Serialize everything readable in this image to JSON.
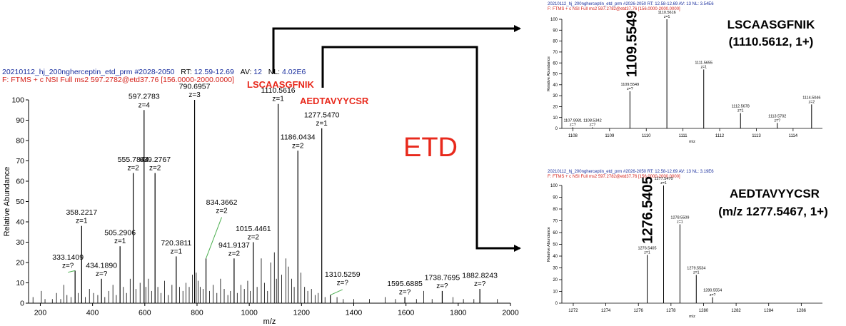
{
  "colors": {
    "accent_red": "#e8291c",
    "header_blue": "#1a2f9e",
    "header_red": "#d4211a",
    "peak": "#000000",
    "leader": "#4caf50"
  },
  "annotations": {
    "etd": "ETD",
    "label_lscaasgfnik": "LSCAASGFNIK",
    "label_aedtavyycsr": "AEDTAVYYCSR",
    "inset_top_title": "LSCAASGFNIK",
    "inset_top_sub": "(1110.5612, 1+)",
    "inset_bottom_title": "AEDTAVYYCSR",
    "inset_bottom_sub": "(m/z 1277.5467, 1+)",
    "rot_top": "1109.5549",
    "rot_bottom": "1276.5405"
  },
  "main_header": {
    "name": "20210112_hj_200ngherceptin_etd_prm",
    "scan": "#2028-2050",
    "rt_label": "RT:",
    "rt": "12.59-12.69",
    "av_label": "AV:",
    "av": "12",
    "nl_label": "NL:",
    "nl": "4.02E6",
    "filter": "F: FTMS + c NSI Full ms2 597.2782@etd37.76 [156.0000-2000.0000]"
  },
  "inset_top_header": {
    "line1": "20210112_hj_200ngherceptin_etd_prm #2026-2050   RT: 12.58-12.69   AV: 13   NL: 3.54E6",
    "line2": "F: FTMS + c NSI Full ms2 597.2782@etd37.76 [156.0000-2000.0000]"
  },
  "inset_bottom_header": {
    "line1": "20210112_hj_200ngherceptin_etd_prm #2026-2050   RT: 12.58-12.69   AV: 13   NL: 3.19E6",
    "line2": "F: FTMS + c NSI Full ms2 597.2782@etd37.76 [156.0000-2000.0000]"
  },
  "chart_data": [
    {
      "type": "bar",
      "xlabel": "m/z",
      "ylabel": "Relative Abundance",
      "xlim": [
        155,
        2000
      ],
      "ylim": [
        0,
        100
      ],
      "xticks": [
        200,
        400,
        600,
        800,
        1000,
        1200,
        1400,
        1600,
        1800,
        2000
      ],
      "yticks": [
        0,
        10,
        20,
        30,
        40,
        50,
        60,
        70,
        80,
        90,
        100
      ],
      "peaks": [
        {
          "x": 333.1409,
          "y": 16,
          "label": "333.1409",
          "z": "z=?"
        },
        {
          "x": 358.2217,
          "y": 38,
          "label": "358.2217",
          "z": "z=1"
        },
        {
          "x": 434.189,
          "y": 12,
          "label": "434.1890",
          "z": "z=?"
        },
        {
          "x": 505.2906,
          "y": 28,
          "label": "505.2906",
          "z": "z=1"
        },
        {
          "x": 555.7844,
          "y": 64,
          "label": "555.7844",
          "z": "z=2"
        },
        {
          "x": 597.2783,
          "y": 95,
          "label": "597.2783",
          "z": "z=4"
        },
        {
          "x": 639.2767,
          "y": 64,
          "label": "639.2767",
          "z": "z=2"
        },
        {
          "x": 720.3811,
          "y": 23,
          "label": "720.3811",
          "z": "z=1"
        },
        {
          "x": 790.6957,
          "y": 100,
          "label": "790.6957",
          "z": "z=3"
        },
        {
          "x": 834.3662,
          "y": 22,
          "label": "834.3662",
          "z": "z=2"
        },
        {
          "x": 941.9137,
          "y": 22,
          "label": "941.9137",
          "z": "z=2"
        },
        {
          "x": 1015.4461,
          "y": 30,
          "label": "1015.4461",
          "z": "z=2"
        },
        {
          "x": 1110.5616,
          "y": 98,
          "label": "1110.5616",
          "z": "z=1"
        },
        {
          "x": 1186.0434,
          "y": 75,
          "label": "1186.0434",
          "z": "z=2"
        },
        {
          "x": 1277.547,
          "y": 86,
          "label": "1277.5470",
          "z": "z=1"
        },
        {
          "x": 1310.5259,
          "y": 4,
          "label": "1310.5259",
          "z": "z=?"
        },
        {
          "x": 1595.6885,
          "y": 3,
          "label": "1595.6885",
          "z": "z=?"
        },
        {
          "x": 1738.7695,
          "y": 6,
          "label": "1738.7695",
          "z": "z=?"
        },
        {
          "x": 1882.8243,
          "y": 7,
          "label": "1882.8243",
          "z": "z=?"
        }
      ],
      "minor_peaks": [
        [
          172,
          3
        ],
        [
          204,
          6
        ],
        [
          218,
          2
        ],
        [
          246,
          2
        ],
        [
          262,
          5
        ],
        [
          278,
          2
        ],
        [
          290,
          9
        ],
        [
          302,
          4
        ],
        [
          318,
          3
        ],
        [
          345,
          5
        ],
        [
          372,
          3
        ],
        [
          388,
          7
        ],
        [
          404,
          5
        ],
        [
          420,
          4
        ],
        [
          447,
          3
        ],
        [
          462,
          6
        ],
        [
          478,
          9
        ],
        [
          491,
          4
        ],
        [
          518,
          8
        ],
        [
          530,
          5
        ],
        [
          544,
          12
        ],
        [
          566,
          7
        ],
        [
          582,
          10
        ],
        [
          604,
          8
        ],
        [
          614,
          12
        ],
        [
          626,
          6
        ],
        [
          650,
          8
        ],
        [
          662,
          5
        ],
        [
          676,
          11
        ],
        [
          690,
          4
        ],
        [
          704,
          9
        ],
        [
          733,
          8
        ],
        [
          746,
          6
        ],
        [
          758,
          10
        ],
        [
          770,
          8
        ],
        [
          782,
          14
        ],
        [
          797,
          15
        ],
        [
          804,
          11
        ],
        [
          812,
          8
        ],
        [
          823,
          7
        ],
        [
          848,
          6
        ],
        [
          862,
          9
        ],
        [
          876,
          5
        ],
        [
          890,
          12
        ],
        [
          904,
          7
        ],
        [
          918,
          4
        ],
        [
          928,
          6
        ],
        [
          954,
          5
        ],
        [
          968,
          9
        ],
        [
          981,
          7
        ],
        [
          994,
          11
        ],
        [
          1004,
          6
        ],
        [
          1030,
          8
        ],
        [
          1046,
          22
        ],
        [
          1058,
          10
        ],
        [
          1070,
          6
        ],
        [
          1082,
          20
        ],
        [
          1096,
          25
        ],
        [
          1104,
          12
        ],
        [
          1124,
          14
        ],
        [
          1140,
          22
        ],
        [
          1150,
          18
        ],
        [
          1162,
          12
        ],
        [
          1172,
          8
        ],
        [
          1198,
          15
        ],
        [
          1212,
          8
        ],
        [
          1224,
          6
        ],
        [
          1238,
          7
        ],
        [
          1252,
          4
        ],
        [
          1264,
          5
        ],
        [
          1290,
          3
        ],
        [
          1336,
          3
        ],
        [
          1360,
          2
        ],
        [
          1400,
          2
        ],
        [
          1460,
          2
        ],
        [
          1520,
          3
        ],
        [
          1560,
          2
        ],
        [
          1640,
          2
        ],
        [
          1668,
          6
        ],
        [
          1700,
          2
        ],
        [
          1780,
          3
        ],
        [
          1820,
          2
        ],
        [
          1860,
          2
        ],
        [
          1950,
          2
        ]
      ]
    },
    {
      "type": "bar",
      "xlabel": "m/z",
      "ylabel": "Relative Abundance",
      "xlim": [
        1107.7,
        1114.8
      ],
      "ylim": [
        0,
        100
      ],
      "xticks": [
        1108,
        1109,
        1110,
        1111,
        1112,
        1113,
        1114
      ],
      "yticks": [
        0,
        10,
        20,
        30,
        40,
        50,
        60,
        70,
        80,
        90,
        100
      ],
      "peaks": [
        {
          "x": 1107.9981,
          "y": 1,
          "label": "1107.9981",
          "z": "z=?"
        },
        {
          "x": 1108.5342,
          "y": 1,
          "label": "1108.5342",
          "z": "z=?"
        },
        {
          "x": 1109.5549,
          "y": 34,
          "label": "1109.5549",
          "z": "z=?"
        },
        {
          "x": 1110.5616,
          "y": 100,
          "label": "1110.5616",
          "z": "z=1"
        },
        {
          "x": 1111.5655,
          "y": 54,
          "label": "1111.5655",
          "z": "z=1"
        },
        {
          "x": 1112.5678,
          "y": 14,
          "label": "1112.5678",
          "z": "z=1"
        },
        {
          "x": 1113.5702,
          "y": 5,
          "label": "1113.5702",
          "z": "z=?"
        },
        {
          "x": 1114.5046,
          "y": 22,
          "label": "1114.5046",
          "z": "z=2"
        }
      ],
      "minor_peaks": []
    },
    {
      "type": "bar",
      "xlabel": "m/z",
      "ylabel": "Relative Abundance",
      "xlim": [
        1271.3,
        1287.3
      ],
      "ylim": [
        0,
        100
      ],
      "xticks": [
        1272,
        1274,
        1276,
        1278,
        1280,
        1282,
        1284,
        1286
      ],
      "yticks": [
        0,
        10,
        20,
        30,
        40,
        50,
        60,
        70,
        80,
        90,
        100
      ],
      "peaks": [
        {
          "x": 1276.5405,
          "y": 41,
          "label": "1276.5405",
          "z": "z=1"
        },
        {
          "x": 1277.547,
          "y": 100,
          "label": "1277.5470",
          "z": "z=1"
        },
        {
          "x": 1278.5509,
          "y": 67,
          "label": "1278.5509",
          "z": "z=1"
        },
        {
          "x": 1279.5534,
          "y": 24,
          "label": "1279.5534",
          "z": "z=1"
        },
        {
          "x": 1280.5554,
          "y": 5,
          "label": "1280.5554",
          "z": "z=?"
        }
      ],
      "minor_peaks": []
    }
  ]
}
